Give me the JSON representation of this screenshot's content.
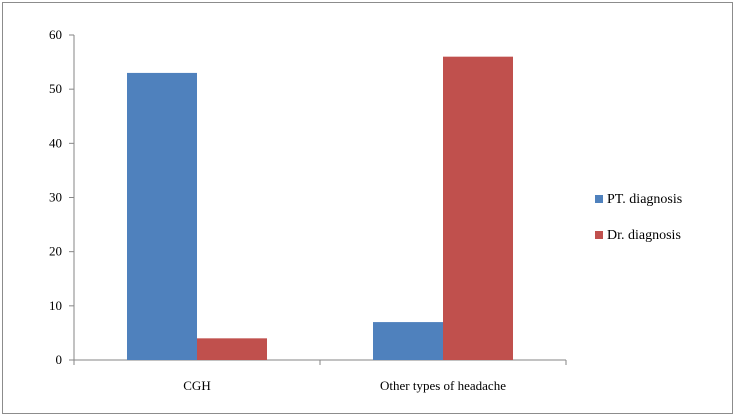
{
  "chart_data": {
    "type": "bar",
    "categories": [
      "CGH",
      "Other types of headache"
    ],
    "series": [
      {
        "name": "PT. diagnosis",
        "values": [
          53,
          7
        ],
        "color": "#4f81bd"
      },
      {
        "name": "Dr. diagnosis",
        "values": [
          4,
          56
        ],
        "color": "#c0504d"
      }
    ],
    "ylim": [
      0,
      60
    ],
    "yticks": [
      0,
      10,
      20,
      30,
      40,
      50,
      60
    ],
    "grid": false,
    "legend_position": "right",
    "title": "",
    "xlabel": "",
    "ylabel": ""
  }
}
